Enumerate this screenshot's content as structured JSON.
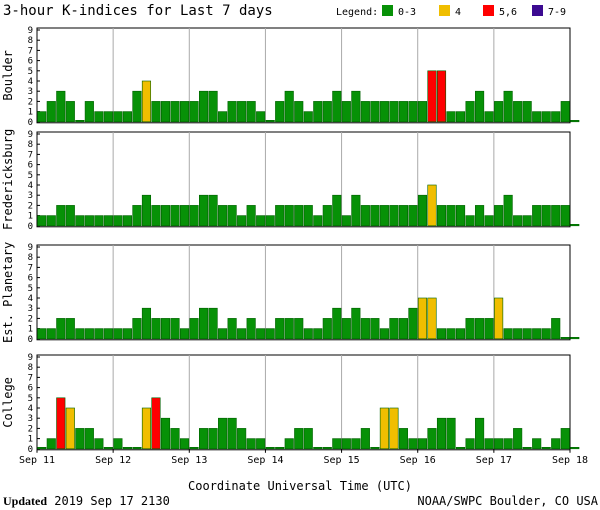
{
  "chart_data": {
    "type": "bar",
    "title": "3-hour K-indices for Last 7 days",
    "legend": {
      "label": "Legend:",
      "items": [
        {
          "label": "0-3",
          "color": "#079107"
        },
        {
          "label": "4",
          "color": "#f0be00"
        },
        {
          "label": "5,6",
          "color": "#ff0000"
        },
        {
          "label": "7-9",
          "color": "#3c0a91"
        }
      ]
    },
    "x_ticks": [
      "Sep 11",
      "Sep 12",
      "Sep 13",
      "Sep 14",
      "Sep 15",
      "Sep 16",
      "Sep 17",
      "Sep 18"
    ],
    "xlabel": "Coordinate Universal Time (UTC)",
    "ylim": [
      0,
      9
    ],
    "y_ticks": [
      "0",
      "1",
      "2",
      "3",
      "4",
      "5",
      "6",
      "7",
      "8",
      "9"
    ],
    "panels": [
      {
        "name": "Boulder",
        "values": [
          1,
          2,
          3,
          2,
          0,
          2,
          1,
          1,
          1,
          1,
          3,
          4,
          2,
          2,
          2,
          2,
          2,
          3,
          3,
          1,
          2,
          2,
          2,
          1,
          0,
          2,
          3,
          2,
          1,
          2,
          2,
          3,
          2,
          3,
          2,
          2,
          2,
          2,
          2,
          2,
          2,
          5,
          5,
          1,
          1,
          2,
          3,
          1,
          2,
          3,
          2,
          2,
          1,
          1,
          1,
          2,
          0
        ]
      },
      {
        "name": "Fredericksburg",
        "values": [
          1,
          1,
          2,
          2,
          1,
          1,
          1,
          1,
          1,
          1,
          2,
          3,
          2,
          2,
          2,
          2,
          2,
          3,
          3,
          2,
          2,
          1,
          2,
          1,
          1,
          2,
          2,
          2,
          2,
          1,
          2,
          3,
          1,
          3,
          2,
          2,
          2,
          2,
          2,
          2,
          3,
          4,
          2,
          2,
          2,
          1,
          2,
          1,
          2,
          3,
          1,
          1,
          2,
          2,
          2,
          2,
          0
        ]
      },
      {
        "name": "Est. Planetary",
        "values": [
          1,
          1,
          2,
          2,
          1,
          1,
          1,
          1,
          1,
          1,
          2,
          3,
          2,
          2,
          2,
          1,
          2,
          3,
          3,
          1,
          2,
          1,
          2,
          1,
          1,
          2,
          2,
          2,
          1,
          1,
          2,
          3,
          2,
          3,
          2,
          2,
          1,
          2,
          2,
          3,
          4,
          4,
          1,
          1,
          1,
          2,
          2,
          2,
          4,
          1,
          1,
          1,
          1,
          1,
          2,
          0,
          0
        ]
      },
      {
        "name": "College",
        "values": [
          0,
          1,
          5,
          4,
          2,
          2,
          1,
          0,
          1,
          0,
          0,
          4,
          5,
          3,
          2,
          1,
          0,
          2,
          2,
          3,
          3,
          2,
          1,
          1,
          0,
          0,
          1,
          2,
          2,
          0,
          0,
          1,
          1,
          1,
          2,
          0,
          4,
          4,
          2,
          1,
          1,
          2,
          3,
          3,
          0,
          1,
          3,
          1,
          1,
          1,
          2,
          0,
          1,
          0,
          1,
          2,
          0
        ]
      }
    ],
    "footer_left_bold": "Updated",
    "footer_left_rest": " 2019 Sep 17 2130",
    "footer_right": "NOAA/SWPC Boulder, CO USA"
  }
}
